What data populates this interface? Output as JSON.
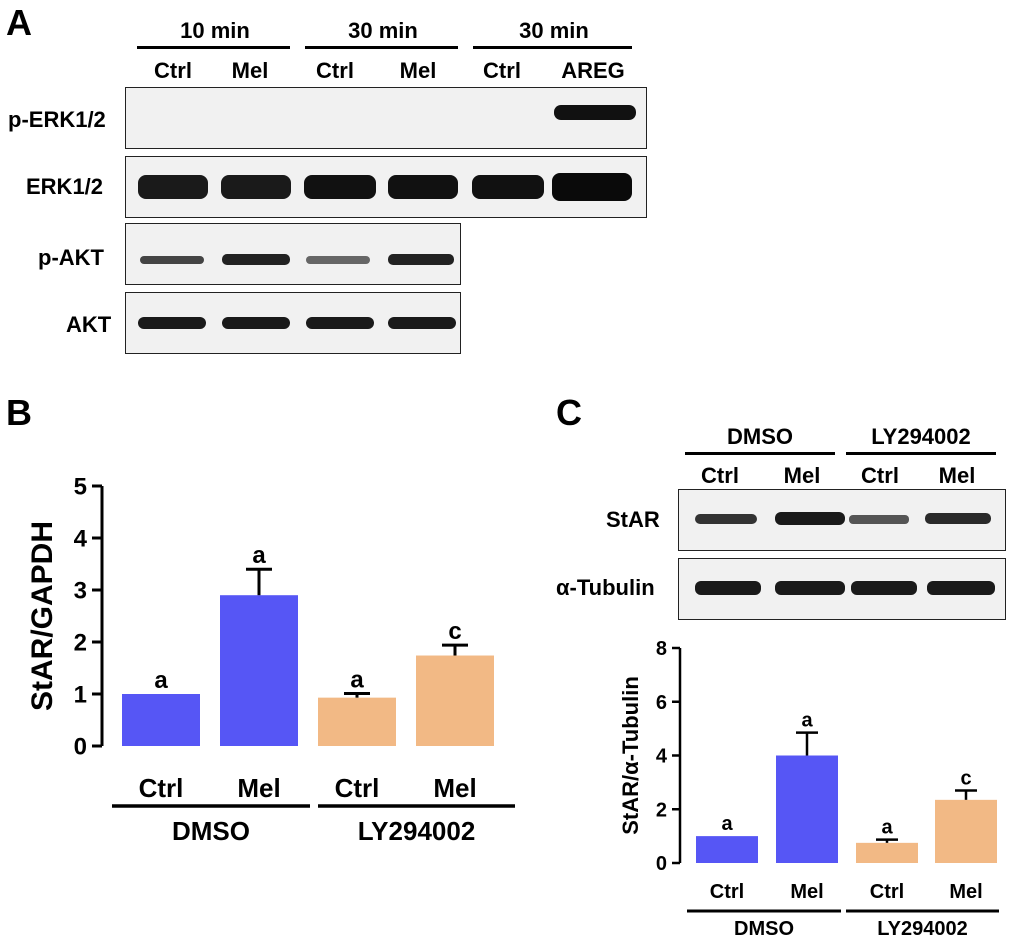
{
  "panel_a": {
    "letter": "A",
    "groups": [
      "10 min",
      "30 min",
      "30 min"
    ],
    "lanes": [
      "Ctrl",
      "Mel",
      "Ctrl",
      "Mel",
      "Ctrl",
      "AREG"
    ],
    "rows": [
      "p-ERK1/2",
      "ERK1/2",
      "p-AKT",
      "AKT"
    ]
  },
  "panel_b": {
    "letter": "B"
  },
  "panel_c": {
    "letter": "C",
    "groups": [
      "DMSO",
      "LY294002"
    ],
    "lanes": [
      "Ctrl",
      "Mel",
      "Ctrl",
      "Mel"
    ],
    "rows": [
      "StAR",
      "α-Tubulin"
    ]
  },
  "colors": {
    "dmso": "#5656f5",
    "ly": "#f2b985"
  },
  "chart_data": [
    {
      "type": "bar",
      "panel": "B",
      "categories": [
        "Ctrl",
        "Mel",
        "Ctrl",
        "Mel"
      ],
      "groups": [
        "DMSO",
        "LY294002"
      ],
      "values": [
        1.0,
        2.9,
        0.93,
        1.74
      ],
      "errors": [
        0,
        0.5,
        0.08,
        0.2
      ],
      "letters": [
        "a",
        "a",
        "a",
        "c"
      ],
      "ylabel": "StAR/GAPDH",
      "ylim": [
        0,
        5
      ],
      "yticks": [
        "0",
        "1",
        "2",
        "3",
        "4",
        "5"
      ]
    },
    {
      "type": "bar",
      "panel": "C",
      "categories": [
        "Ctrl",
        "Mel",
        "Ctrl",
        "Mel"
      ],
      "groups": [
        "DMSO",
        "LY294002"
      ],
      "values": [
        1.0,
        4.0,
        0.75,
        2.35
      ],
      "errors": [
        0,
        0.85,
        0.12,
        0.35
      ],
      "letters": [
        "a",
        "a",
        "a",
        "c"
      ],
      "ylabel": "StAR/α-Tubulin",
      "ylim": [
        0,
        8
      ],
      "yticks": [
        "0",
        "2",
        "4",
        "6",
        "8"
      ]
    }
  ]
}
